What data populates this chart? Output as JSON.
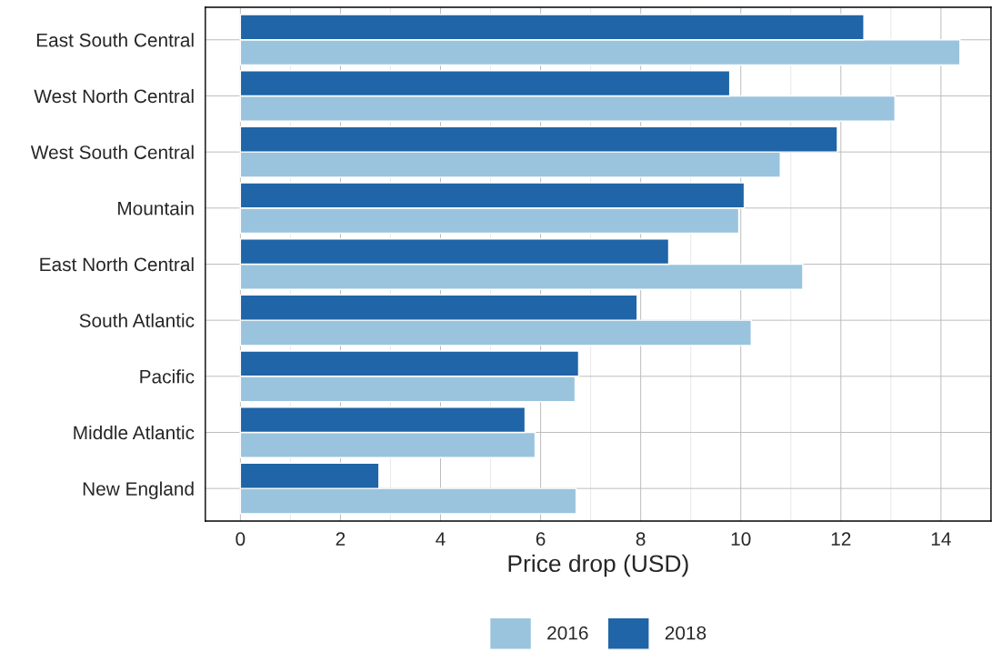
{
  "chart_data": {
    "type": "bar",
    "orientation": "horizontal",
    "xlabel": "Price drop (USD)",
    "categories": [
      "East South Central",
      "West North Central",
      "West South Central",
      "Mountain",
      "East North Central",
      "South Atlantic",
      "Pacific",
      "Middle Atlantic",
      "New England"
    ],
    "series": [
      {
        "name": "2016",
        "color": "#9ac4de",
        "values": [
          14.38,
          13.08,
          10.79,
          9.96,
          11.24,
          10.21,
          6.69,
          5.89,
          6.71
        ]
      },
      {
        "name": "2018",
        "color": "#1f65a7",
        "values": [
          12.46,
          9.78,
          11.93,
          10.07,
          8.56,
          7.93,
          6.76,
          5.69,
          2.77
        ]
      }
    ],
    "xlim": [
      -0.7,
      15
    ],
    "xticks": [
      0,
      2,
      4,
      6,
      8,
      10,
      12,
      14
    ],
    "grid": true,
    "legend": "bottom"
  }
}
